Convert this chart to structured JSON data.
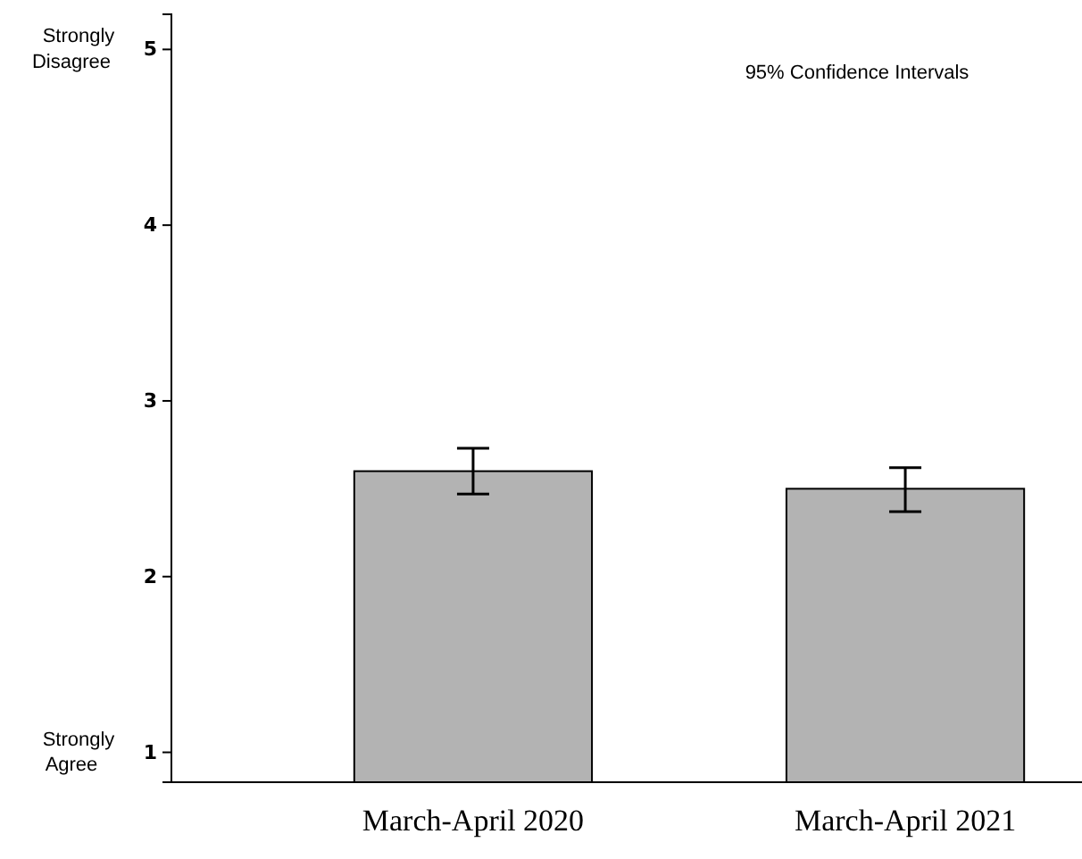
{
  "chart_data": {
    "type": "bar",
    "categories": [
      "March-April 2020",
      "March-April 2021"
    ],
    "values": [
      2.6,
      2.5
    ],
    "color": "#b3b3b3",
    "errors": [
      [
        2.47,
        2.73
      ],
      [
        2.37,
        2.62
      ]
    ],
    "ylim": [
      0.83,
      5.2
    ],
    "yticks": [
      1,
      2,
      3,
      4,
      5
    ],
    "grid": false,
    "annotations": [
      "95% Confidence Intervals",
      "Strongly Disagree",
      "Strongly Agree"
    ]
  }
}
